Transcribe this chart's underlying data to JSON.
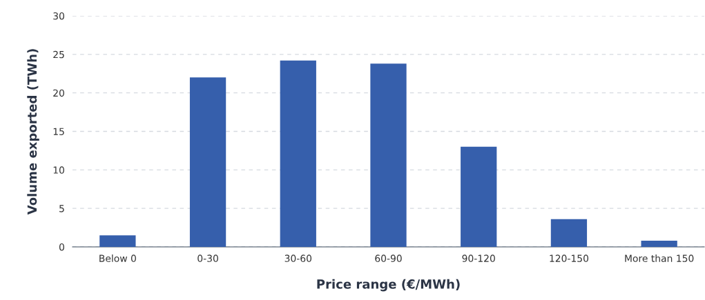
{
  "chart_data": {
    "type": "bar",
    "xlabel": "Price range (€/MWh)",
    "ylabel": "Volume exported (TWh)",
    "categories": [
      "Below 0",
      "0-30",
      "30-60",
      "60-90",
      "90-120",
      "120-150",
      "More than 150"
    ],
    "values": [
      1.5,
      22.0,
      24.2,
      23.8,
      13.0,
      3.6,
      0.8
    ],
    "color": "#365fac",
    "ylim": [
      0,
      30
    ],
    "yticks": [
      0,
      5,
      10,
      15,
      20,
      25,
      30
    ],
    "grid": "y",
    "legend": false
  }
}
